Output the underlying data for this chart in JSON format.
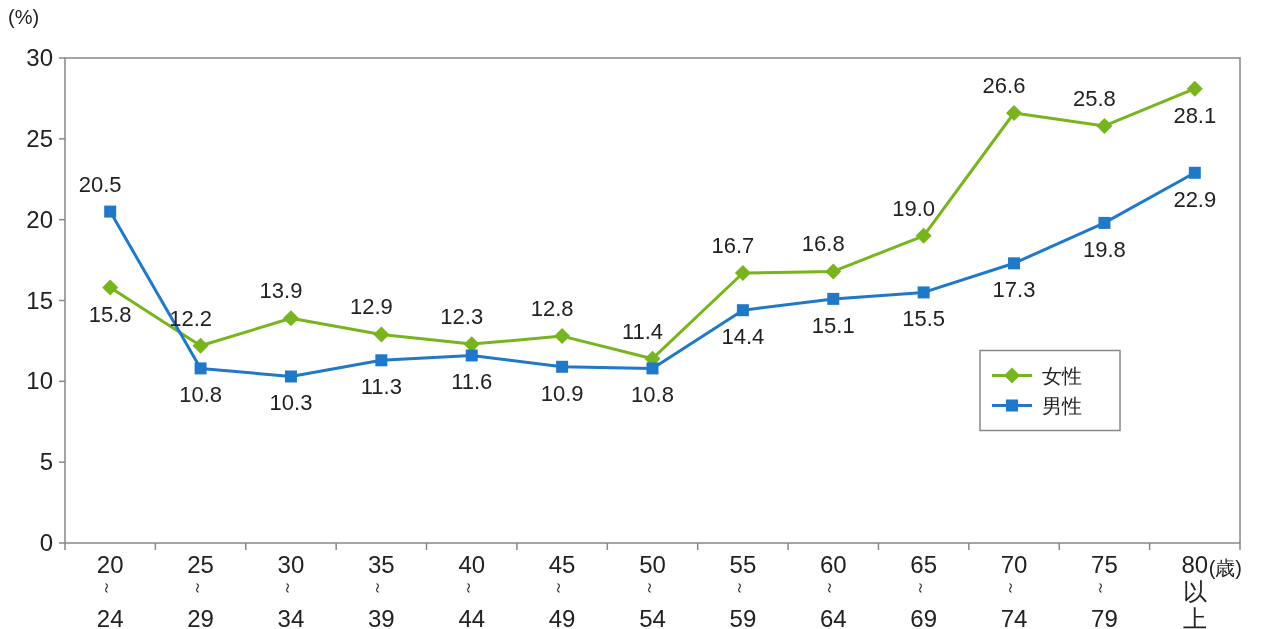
{
  "chart_data": {
    "type": "line",
    "ylabel": "(%)",
    "xlabel": "(歳)",
    "categories": [
      "20～24",
      "25～29",
      "30～34",
      "35～39",
      "40～44",
      "45～49",
      "50～54",
      "55～59",
      "60～64",
      "65～69",
      "70～74",
      "75～79",
      "80以上"
    ],
    "series": [
      {
        "name": "女性",
        "color": "#78b41e",
        "marker": "diamond",
        "values": [
          15.8,
          12.2,
          13.9,
          12.9,
          12.3,
          12.8,
          11.4,
          16.7,
          16.8,
          19.0,
          26.6,
          25.8,
          28.1
        ],
        "value_labels": [
          "15.8",
          "12.2",
          "13.9",
          "12.9",
          "12.3",
          "12.8",
          "11.4",
          "16.7",
          "16.8",
          "19.0",
          "26.6",
          "25.8",
          "28.1"
        ]
      },
      {
        "name": "男性",
        "color": "#1f78c8",
        "marker": "square",
        "values": [
          20.5,
          10.8,
          10.3,
          11.3,
          11.6,
          10.9,
          10.8,
          14.4,
          15.1,
          15.5,
          17.3,
          19.8,
          22.9
        ],
        "value_labels": [
          "20.5",
          "10.8",
          "10.3",
          "11.3",
          "11.6",
          "10.9",
          "10.8",
          "14.4",
          "15.1",
          "15.5",
          "17.3",
          "19.8",
          "22.9"
        ]
      }
    ],
    "ylim": [
      0,
      30
    ],
    "yticks": [
      0,
      5,
      10,
      15,
      20,
      25,
      30
    ],
    "legend": "right",
    "line_style": "solid"
  }
}
